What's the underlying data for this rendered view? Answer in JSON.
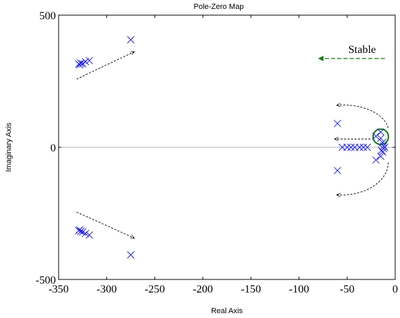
{
  "chart_data": {
    "type": "scatter",
    "title": "Pole-Zero Map",
    "xlabel": "Real Axis",
    "ylabel": "Imaginary Axis",
    "xlim": [
      -350,
      0
    ],
    "ylim": [
      -500,
      500
    ],
    "xticks": [
      "-350",
      "-300",
      "-250",
      "-200",
      "-150",
      "-100",
      "-50",
      "0"
    ],
    "xtick_values": [
      -350,
      -300,
      -250,
      -200,
      -150,
      -100,
      -50,
      0
    ],
    "yticks": [
      "500",
      "0",
      "-500"
    ],
    "ytick_values": [
      500,
      0,
      -500
    ],
    "grid": false,
    "zero_line": true,
    "marker_color": "#1f1fff",
    "series": [
      {
        "marker": "x",
        "points": [
          [
            -329,
            315
          ],
          [
            -328,
            312
          ],
          [
            -327,
            318
          ],
          [
            -325,
            316
          ],
          [
            -322,
            324
          ],
          [
            -318,
            328
          ],
          [
            -275,
            407
          ],
          [
            -329,
            -315
          ],
          [
            -328,
            -312
          ],
          [
            -327,
            -318
          ],
          [
            -325,
            -320
          ],
          [
            -322,
            -326
          ],
          [
            -318,
            -332
          ],
          [
            -275,
            -407
          ],
          [
            -60,
            90
          ],
          [
            -60,
            -88
          ],
          [
            -55,
            0
          ],
          [
            -50,
            0
          ],
          [
            -46,
            0
          ],
          [
            -42,
            0
          ],
          [
            -37,
            0
          ],
          [
            -33,
            0
          ],
          [
            -29,
            0
          ],
          [
            -20,
            42
          ],
          [
            -20,
            -48
          ],
          [
            -15,
            58
          ],
          [
            -15,
            34
          ],
          [
            -13,
            18
          ],
          [
            -12,
            5
          ],
          [
            -11,
            0
          ],
          [
            -12,
            -5
          ],
          [
            -13,
            -18
          ],
          [
            -15,
            -34
          ],
          [
            -14,
            -12
          ]
        ]
      }
    ],
    "annotations": {
      "stable_label": "Stable",
      "stable_arrow_color": "#008000",
      "circle_color": "#008000",
      "circle_center": [
        -15,
        40
      ],
      "circle_radius_data_x": 8
    }
  }
}
